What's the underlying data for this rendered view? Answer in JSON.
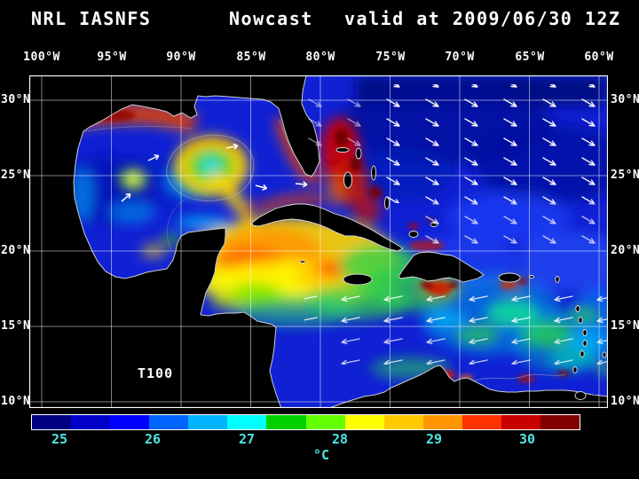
{
  "title": {
    "left": "NRL IASNFS",
    "center": "Nowcast",
    "right": "valid at 2009/06/30 12Z"
  },
  "axes": {
    "top": [
      "100°W",
      "95°W",
      "90°W",
      "85°W",
      "80°W",
      "75°W",
      "70°W",
      "65°W",
      "60°W"
    ],
    "left": [
      "30°N",
      "25°N",
      "20°N",
      "15°N",
      "10°N"
    ],
    "right": [
      "30°N",
      "25°N",
      "20°N",
      "15°N",
      "10°N"
    ]
  },
  "map": {
    "annotation": "T100"
  },
  "colorbar": {
    "ticks": [
      "25",
      "26",
      "27",
      "28",
      "29",
      "30"
    ],
    "unit": "°C",
    "tick_color": "#4fe3e3",
    "colors": [
      "#000080",
      "#0000c8",
      "#0000ff",
      "#0064ff",
      "#00b4ff",
      "#00ffff",
      "#00d200",
      "#64ff00",
      "#ffff00",
      "#ffc800",
      "#ff9600",
      "#ff3200",
      "#c80000",
      "#800000"
    ]
  },
  "chart_data": {
    "type": "heatmap",
    "title": "NRL IASNFS Nowcast valid at 2009/06/30 12Z",
    "field": "T100",
    "units": "°C",
    "x_axis": {
      "label": "longitude",
      "ticks": [
        "100°W",
        "95°W",
        "90°W",
        "85°W",
        "80°W",
        "75°W",
        "70°W",
        "65°W",
        "60°W"
      ],
      "tick_interval_deg": 5
    },
    "y_axis": {
      "label": "latitude",
      "ticks": [
        "30°N",
        "25°N",
        "20°N",
        "15°N",
        "10°N"
      ],
      "tick_interval_deg": 5
    },
    "colorbar": {
      "orientation": "horizontal",
      "units": "°C",
      "ticks": [
        25,
        26,
        27,
        28,
        29,
        30
      ]
    },
    "overlays": [
      "white vector arrows over the Atlantic and in trade-wind bands across the Caribbean",
      "black land mask with white coastlines",
      "5-degree latitude/longitude grid",
      "gray contour lines in the Gulf of Mexico"
    ],
    "notable_features": [
      "warm (red, >29°C) band along the northern Gulf of Mexico coast",
      "warm ring/eddy (yellow ring, green-cyan core) in the central Gulf of Mexico near 25N 88W",
      "small intense warm eddy near 25.5N 93W",
      "very warm (red to dark red, >30°C) water around Florida, the Straits of Florida and the Bahamas",
      "broad warm pool (yellow-orange, 28-29°C) in the northwest Caribbean near 17-20N 79-86W",
      "cool (dark blue, ~25°C) open Atlantic northeast of the Antilles",
      "mottled cyan-green (26-28°C) eastern Caribbean",
      "isolated hot spots (red/dark red) south of Hispaniola, near Puerto Rico and along the South American coast"
    ]
  }
}
